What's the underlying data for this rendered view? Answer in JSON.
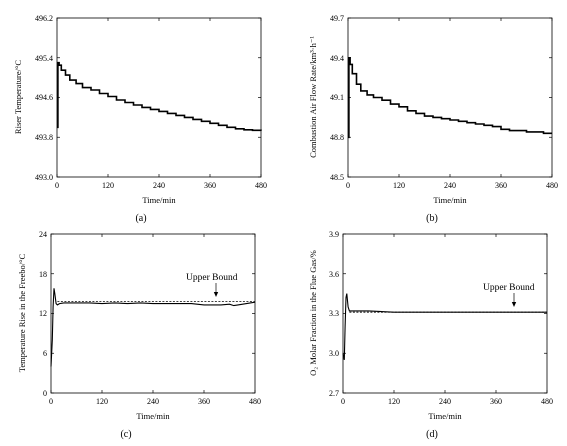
{
  "figure": {
    "panels": [
      {
        "id": "a",
        "caption": "(a)",
        "xlabel": "Time/min",
        "ylabel": "Riser Temperature/°C",
        "xticks": [
          "0",
          "120",
          "240",
          "360",
          "480"
        ],
        "yticks": [
          "493.0",
          "493.8",
          "494.6",
          "495.4",
          "496.2"
        ]
      },
      {
        "id": "b",
        "caption": "(b)",
        "xlabel": "Time/min",
        "ylabel": "Combustion Air Flow Rate/km³·h⁻¹",
        "xticks": [
          "0",
          "120",
          "240",
          "360",
          "480"
        ],
        "yticks": [
          "48.5",
          "48.8",
          "49.1",
          "49.4",
          "49.7"
        ]
      },
      {
        "id": "c",
        "caption": "(c)",
        "xlabel": "Time/min",
        "ylabel": "Temperature Rise in the Freebo/°C",
        "xticks": [
          "0",
          "120",
          "240",
          "360",
          "480"
        ],
        "yticks": [
          "0",
          "6",
          "12",
          "18",
          "24"
        ],
        "annotation": "Upper Bound"
      },
      {
        "id": "d",
        "caption": "(d)",
        "xlabel": "Time/min",
        "ylabel": "O₂ Molar Fraction in the Flue Gas/%",
        "xticks": [
          "0",
          "120",
          "240",
          "360",
          "480"
        ],
        "yticks": [
          "2.7",
          "3.0",
          "3.3",
          "3.6",
          "3.9"
        ],
        "annotation": "Upper Bound"
      }
    ]
  },
  "chart_data": [
    {
      "type": "line",
      "panel": "a",
      "xlabel": "Time/min",
      "ylabel": "Riser Temperature/°C",
      "xlim": [
        0,
        480
      ],
      "ylim": [
        493.0,
        496.2
      ],
      "grid": false,
      "series": [
        {
          "x": [
            0,
            2,
            5,
            10,
            20,
            30,
            45,
            60,
            80,
            100,
            120,
            140,
            160,
            180,
            200,
            220,
            240,
            260,
            280,
            300,
            320,
            340,
            360,
            380,
            400,
            420,
            440,
            460,
            480
          ],
          "y": [
            494.0,
            495.3,
            495.25,
            495.15,
            495.05,
            494.95,
            494.88,
            494.8,
            494.75,
            494.68,
            494.62,
            494.55,
            494.5,
            494.45,
            494.4,
            494.36,
            494.32,
            494.28,
            494.24,
            494.2,
            494.16,
            494.12,
            494.08,
            494.04,
            494.0,
            493.97,
            493.95,
            493.94,
            493.93
          ]
        }
      ]
    },
    {
      "type": "line",
      "panel": "b",
      "xlabel": "Time/min",
      "ylabel": "Combustion Air Flow Rate/km³·h⁻¹",
      "xlim": [
        0,
        480
      ],
      "ylim": [
        48.5,
        49.7
      ],
      "grid": false,
      "series": [
        {
          "x": [
            0,
            2,
            5,
            10,
            20,
            30,
            45,
            60,
            80,
            100,
            120,
            140,
            160,
            180,
            200,
            220,
            240,
            260,
            280,
            300,
            320,
            340,
            360,
            380,
            400,
            420,
            440,
            460,
            480
          ],
          "y": [
            48.8,
            49.4,
            49.35,
            49.28,
            49.2,
            49.15,
            49.12,
            49.1,
            49.08,
            49.05,
            49.03,
            49.0,
            48.98,
            48.96,
            48.95,
            48.94,
            48.93,
            48.92,
            48.91,
            48.9,
            48.89,
            48.88,
            48.86,
            48.85,
            48.85,
            48.84,
            48.84,
            48.83,
            48.83
          ]
        }
      ]
    },
    {
      "type": "line",
      "panel": "c",
      "xlabel": "Time/min",
      "ylabel": "Temperature Rise in the Freebo/°C",
      "xlim": [
        0,
        480
      ],
      "ylim": [
        0,
        24
      ],
      "grid": false,
      "series": [
        {
          "x": [
            0,
            3,
            5,
            7,
            9,
            12,
            15,
            20,
            30,
            60,
            90,
            120,
            150,
            180,
            210,
            240,
            270,
            300,
            330,
            360,
            380,
            400,
            420,
            430,
            440,
            460,
            480
          ],
          "y": [
            4,
            8,
            13,
            15.8,
            15.0,
            13.5,
            13.3,
            13.5,
            13.6,
            13.6,
            13.6,
            13.5,
            13.6,
            13.5,
            13.6,
            13.5,
            13.5,
            13.5,
            13.5,
            13.3,
            13.3,
            13.3,
            13.4,
            13.2,
            13.3,
            13.5,
            13.7
          ]
        },
        {
          "x": [
            15,
            480
          ],
          "y": [
            13.8,
            13.8
          ]
        }
      ]
    },
    {
      "type": "line",
      "panel": "d",
      "xlabel": "Time/min",
      "ylabel": "O₂ Molar Fraction in the Flue Gas/%",
      "xlim": [
        0,
        480
      ],
      "ylim": [
        2.7,
        3.9
      ],
      "grid": false,
      "series": [
        {
          "x": [
            0,
            3,
            5,
            7,
            9,
            12,
            15,
            20,
            30,
            60,
            120,
            180,
            240,
            300,
            360,
            420,
            480
          ],
          "y": [
            3.0,
            2.95,
            3.2,
            3.42,
            3.45,
            3.35,
            3.32,
            3.32,
            3.32,
            3.32,
            3.31,
            3.31,
            3.31,
            3.31,
            3.31,
            3.31,
            3.31
          ]
        },
        {
          "x": [
            15,
            480
          ],
          "y": [
            3.31,
            3.31
          ]
        }
      ]
    }
  ]
}
